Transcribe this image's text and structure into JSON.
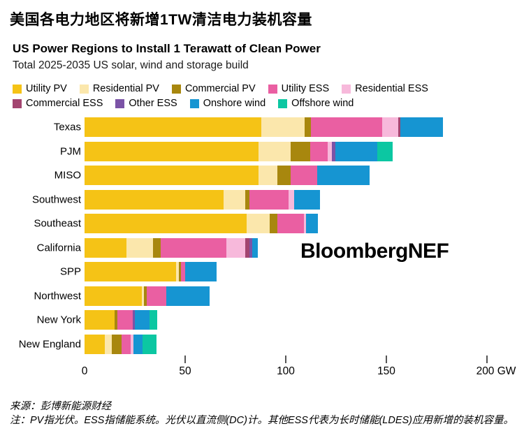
{
  "page": {
    "title_zh": "美国各电力地区将新增1TW清洁电力装机容量",
    "title_en": "US Power Regions to Install 1 Terawatt of Clean Power",
    "subtitle": "Total 2025-2035 US solar, wind and storage build",
    "watermark": "BloombergNEF"
  },
  "footer": {
    "source": "来源：彭博新能源财经",
    "note": "注：PV指光伏。ESS指储能系统。光伏以直流侧(DC)计。其他ESS代表为长时储能(LDES)应用新增的装机容量。"
  },
  "chart_data": {
    "type": "bar",
    "orientation": "horizontal",
    "unit": "GW",
    "title": "US Power Regions to Install 1 Terawatt of Clean Power",
    "subtitle": "Total 2025-2035 US solar, wind and storage build",
    "xlim": [
      0,
      200
    ],
    "grid": false,
    "legend_position": "top",
    "categories": [
      "Texas",
      "PJM",
      "MISO",
      "Southwest",
      "Southeast",
      "California",
      "SPP",
      "Northwest",
      "New York",
      "New England"
    ],
    "x_ticks": [
      {
        "value": 0,
        "label": "0"
      },
      {
        "value": 50,
        "label": "50"
      },
      {
        "value": 100,
        "label": "100"
      },
      {
        "value": 150,
        "label": "150"
      },
      {
        "value": 200,
        "label": "200 GW"
      }
    ],
    "series": [
      {
        "name": "Utility PV",
        "color": "#F5C316",
        "values": [
          88,
          86.5,
          86.5,
          69,
          80.5,
          21,
          45.5,
          28.5,
          15,
          10
        ]
      },
      {
        "name": "Residential PV",
        "color": "#FBE7AC",
        "values": [
          21.5,
          16,
          9.5,
          11,
          11.5,
          13,
          1.5,
          1,
          0,
          3.5
        ]
      },
      {
        "name": "Commercial PV",
        "color": "#A8870E",
        "values": [
          3,
          9.5,
          6.5,
          2,
          4,
          4,
          1,
          1.5,
          1.2,
          5
        ]
      },
      {
        "name": "Utility ESS",
        "color": "#EA5FA2",
        "values": [
          35.5,
          9,
          13,
          19.5,
          13,
          32.5,
          2,
          9.5,
          7.7,
          4.5
        ]
      },
      {
        "name": "Residential ESS",
        "color": "#F7B9DB",
        "values": [
          8,
          2,
          0,
          2.5,
          1,
          9.5,
          0,
          0,
          0,
          1.2
        ]
      },
      {
        "name": "Commercial ESS",
        "color": "#A34570",
        "values": [
          1,
          0,
          0,
          0,
          0,
          2,
          0,
          0,
          0,
          0
        ]
      },
      {
        "name": "Other ESS",
        "color": "#7B53A6",
        "values": [
          0,
          1.5,
          0,
          0,
          0,
          1.5,
          0,
          0,
          1,
          0
        ]
      },
      {
        "name": "Onshore wind",
        "color": "#1695D2",
        "values": [
          21,
          21,
          26,
          13,
          6,
          2.5,
          15.5,
          21.5,
          7.3,
          4.5
        ]
      },
      {
        "name": "Offshore wind",
        "color": "#0CC7A2",
        "values": [
          0,
          7.5,
          0,
          0,
          0,
          0,
          0,
          0,
          3.8,
          7
        ]
      }
    ],
    "totals_gw": [
      178,
      153,
      141.5,
      117,
      116,
      86,
      65.5,
      62,
      36,
      35.7
    ]
  }
}
